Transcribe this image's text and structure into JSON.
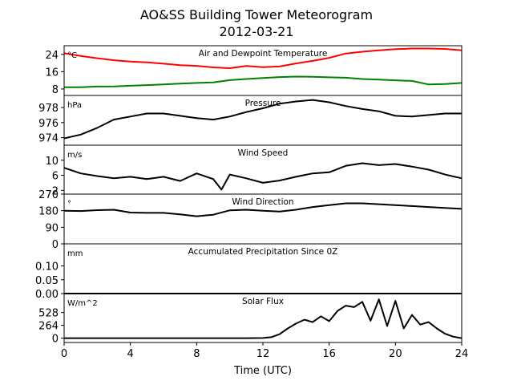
{
  "figure": {
    "title": "AO&SS Building Tower Meteorogram",
    "subtitle": "2012-03-21",
    "xlabel": "Time (UTC)",
    "x_ticks": [
      "0",
      "4",
      "8",
      "12",
      "16",
      "20",
      "24"
    ],
    "xlim": [
      0,
      24
    ]
  },
  "chart_data": [
    {
      "type": "line",
      "title": "Air and Dewpoint Temperature",
      "unit_label": "°C",
      "ylim": [
        5,
        28
      ],
      "y_ticks": [
        8,
        16,
        24
      ],
      "y_tick_labels": [
        "8",
        "16",
        "24"
      ],
      "series": [
        {
          "color": "#ff0000",
          "x": [
            0,
            1,
            2,
            3,
            4,
            5,
            6,
            7,
            8,
            9,
            10,
            11,
            12,
            13,
            14,
            15,
            16,
            17,
            18,
            19,
            20,
            21,
            22,
            23,
            24
          ],
          "y": [
            24.5,
            23.3,
            22.2,
            21.3,
            20.7,
            20.3,
            19.7,
            19.0,
            18.7,
            18.0,
            17.6,
            18.6,
            18.1,
            18.4,
            19.8,
            21.0,
            22.4,
            24.4,
            25.2,
            25.9,
            26.4,
            26.7,
            26.7,
            26.5,
            25.9
          ]
        },
        {
          "color": "#008000",
          "x": [
            0,
            1,
            2,
            3,
            4,
            5,
            6,
            7,
            8,
            9,
            10,
            11,
            12,
            13,
            14,
            15,
            16,
            17,
            18,
            19,
            20,
            21,
            22,
            23,
            24
          ],
          "y": [
            8.8,
            8.8,
            9.1,
            9.2,
            9.5,
            9.8,
            10.1,
            10.5,
            10.8,
            11.0,
            12.1,
            12.6,
            13.1,
            13.5,
            13.7,
            13.6,
            13.4,
            13.2,
            12.6,
            12.3,
            12.0,
            11.7,
            10.1,
            10.3,
            10.8
          ]
        }
      ]
    },
    {
      "type": "line",
      "title": "Pressure",
      "unit_label": "hPa",
      "ylim": [
        973.0,
        979.6
      ],
      "y_ticks": [
        974,
        976,
        978
      ],
      "y_tick_labels": [
        "974",
        "976",
        "978"
      ],
      "series": [
        {
          "color": "#000000",
          "x": [
            0,
            1,
            2,
            3,
            4,
            5,
            6,
            7,
            8,
            9,
            10,
            11,
            12,
            13,
            14,
            15,
            16,
            17,
            18,
            19,
            20,
            21,
            22,
            23,
            24
          ],
          "y": [
            973.9,
            974.4,
            975.3,
            976.4,
            976.8,
            977.2,
            977.2,
            976.9,
            976.6,
            976.4,
            976.8,
            977.4,
            977.9,
            978.5,
            978.8,
            979.0,
            978.7,
            978.2,
            977.8,
            977.5,
            976.9,
            976.8,
            977.0,
            977.2,
            977.2
          ]
        }
      ]
    },
    {
      "type": "line",
      "title": "Wind Speed",
      "unit_label": "m/s",
      "ylim": [
        1,
        14
      ],
      "y_ticks": [
        2,
        6,
        10
      ],
      "y_tick_labels": [
        "2",
        "6",
        "10"
      ],
      "series": [
        {
          "color": "#000000",
          "x": [
            0,
            1,
            2,
            3,
            4,
            5,
            6,
            7,
            8,
            9,
            9.5,
            10,
            11,
            12,
            13,
            14,
            15,
            16,
            17,
            18,
            19,
            20,
            21,
            22,
            23,
            24
          ],
          "y": [
            8.0,
            6.5,
            5.8,
            5.2,
            5.6,
            5.0,
            5.6,
            4.5,
            6.5,
            5.0,
            2.2,
            6.2,
            5.2,
            4.0,
            4.6,
            5.6,
            6.5,
            6.8,
            8.5,
            9.2,
            8.7,
            9.0,
            8.3,
            7.5,
            6.2,
            5.2
          ]
        }
      ]
    },
    {
      "type": "line",
      "title": "Wind Direction",
      "unit_label": "°",
      "ylim": [
        0,
        270
      ],
      "y_ticks": [
        0,
        90,
        180,
        270
      ],
      "y_tick_labels": [
        "0",
        "90",
        "180",
        "270"
      ],
      "series": [
        {
          "color": "#000000",
          "x": [
            0,
            1,
            2,
            3,
            4,
            5,
            6,
            7,
            8,
            9,
            10,
            11,
            12,
            13,
            14,
            15,
            16,
            17,
            18,
            19,
            20,
            21,
            22,
            23,
            24
          ],
          "y": [
            180,
            178,
            183,
            185,
            170,
            168,
            168,
            160,
            150,
            158,
            182,
            185,
            180,
            175,
            185,
            200,
            210,
            220,
            220,
            215,
            210,
            205,
            200,
            195,
            190
          ]
        }
      ]
    },
    {
      "type": "line",
      "title": "Accumulated Precipitation Since 0Z",
      "unit_label": "mm",
      "ylim": [
        0,
        0.18
      ],
      "y_ticks": [
        0.0,
        0.05,
        0.1
      ],
      "y_tick_labels": [
        "0.00",
        "0.05",
        "0.10"
      ],
      "series": [
        {
          "color": "#000000",
          "x": [
            0,
            24
          ],
          "y": [
            0,
            0
          ]
        }
      ]
    },
    {
      "type": "line",
      "title": "Solar Flux",
      "unit_label": "W/m^2",
      "ylim": [
        -90,
        920
      ],
      "y_ticks": [
        0,
        264,
        528
      ],
      "y_tick_labels": [
        "0",
        "264",
        "528"
      ],
      "series": [
        {
          "color": "#000000",
          "x": [
            0,
            11,
            12,
            12.5,
            13,
            13.5,
            14,
            14.5,
            15,
            15.5,
            16,
            16.5,
            17,
            17.5,
            18,
            18.5,
            19,
            19.5,
            20,
            20.5,
            21,
            21.5,
            22,
            22.5,
            23,
            23.5,
            24
          ],
          "y": [
            0,
            0,
            2,
            20,
            80,
            200,
            300,
            380,
            330,
            450,
            350,
            560,
            670,
            640,
            750,
            360,
            800,
            250,
            770,
            200,
            480,
            280,
            330,
            200,
            90,
            30,
            0
          ]
        }
      ]
    }
  ]
}
